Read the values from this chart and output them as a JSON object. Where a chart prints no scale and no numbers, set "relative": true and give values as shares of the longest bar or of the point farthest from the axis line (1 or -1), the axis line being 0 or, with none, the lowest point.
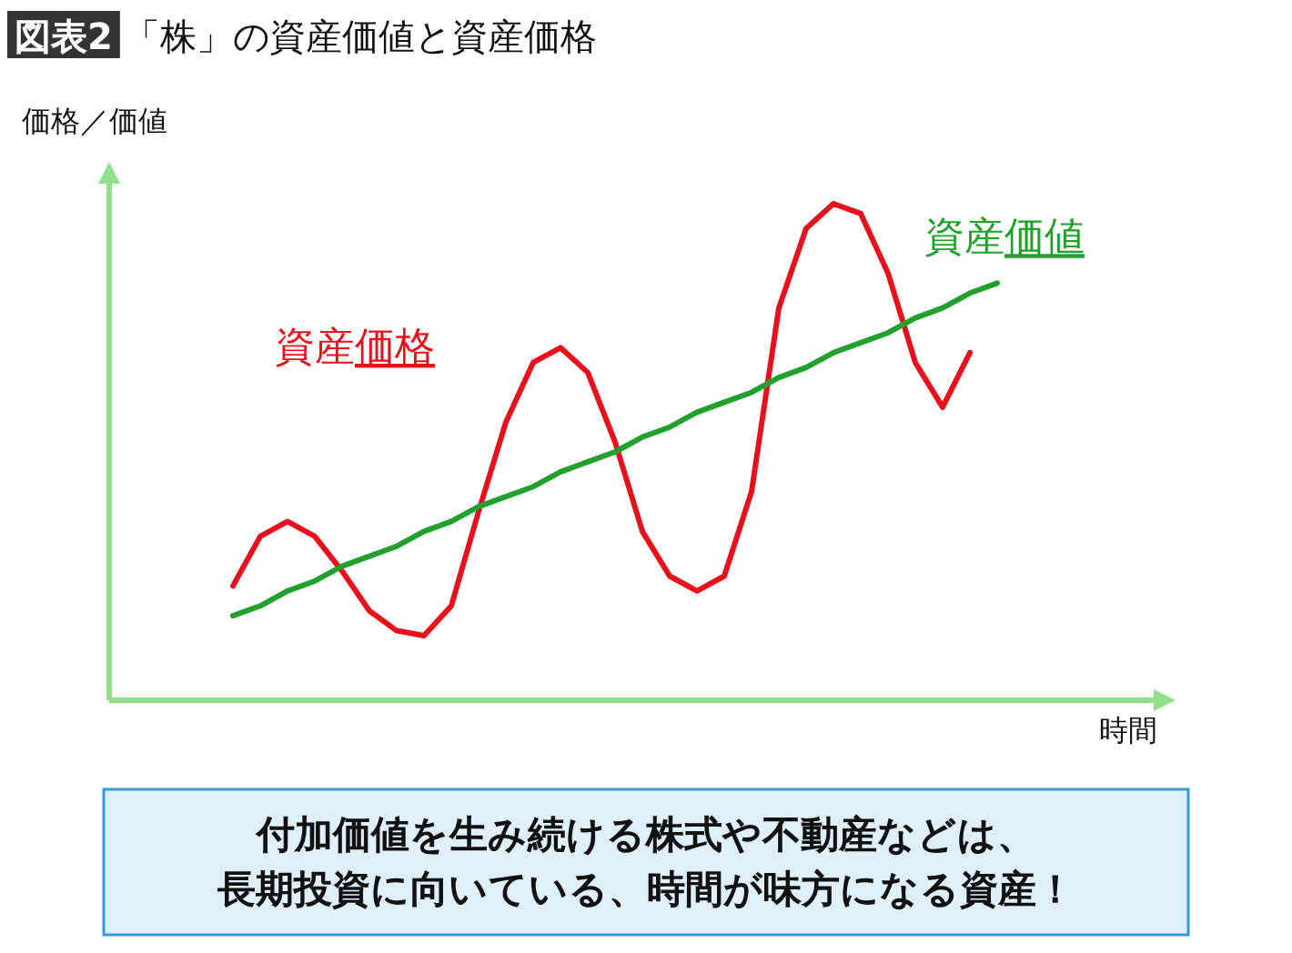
{
  "chart_data": {
    "type": "line",
    "title": "図表2 「株」の資産価値と資産価格",
    "ylabel": "価格／価値",
    "xlabel": "時間",
    "relative": true,
    "legend": false,
    "categories": [
      null,
      null,
      null,
      null,
      null,
      null,
      null,
      null,
      null,
      null,
      null,
      null,
      null,
      null,
      null,
      null,
      null,
      null,
      null,
      null,
      null,
      null,
      null,
      null,
      null,
      null,
      null,
      null,
      null
    ],
    "series": [
      {
        "name": "資産価格",
        "color": "#e8111b",
        "values": [
          0.23,
          0.33,
          0.36,
          0.33,
          0.26,
          0.18,
          0.14,
          0.13,
          0.19,
          0.38,
          0.56,
          0.68,
          0.71,
          0.66,
          0.52,
          0.34,
          0.25,
          0.22,
          0.25,
          0.42,
          0.79,
          0.95,
          1,
          0.98,
          0.86,
          0.68,
          0.59,
          0.7,
          null
        ]
      },
      {
        "name": "資産価値",
        "color": "#22a02e",
        "values": [
          0.17,
          0.19,
          0.22,
          0.24,
          0.27,
          0.29,
          0.31,
          0.34,
          0.36,
          0.39,
          0.41,
          0.43,
          0.46,
          0.48,
          0.5,
          0.53,
          0.55,
          0.58,
          0.6,
          0.62,
          0.65,
          0.67,
          0.7,
          0.72,
          0.74,
          0.77,
          0.79,
          0.82,
          0.84
        ]
      }
    ],
    "annotations": [
      "付加価値を生み続ける株式や不動産などは、",
      "長期投資に向いている、時間が味方になる資産！"
    ]
  }
}
